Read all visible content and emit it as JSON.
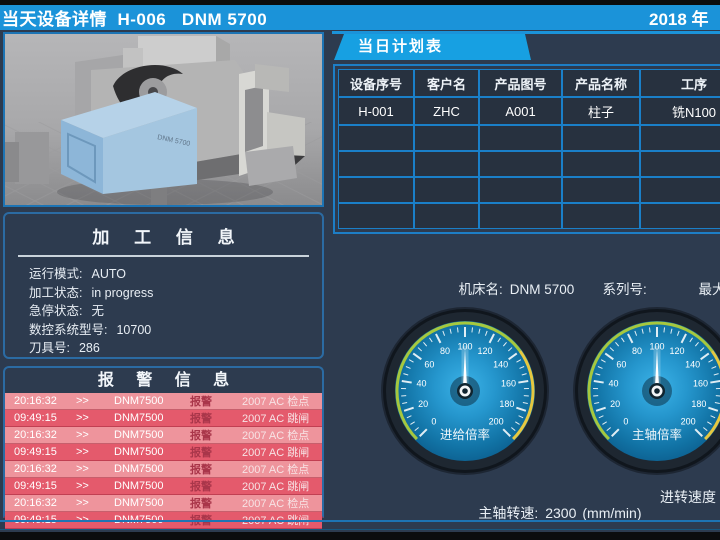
{
  "colors": {
    "accent_blue": "#1b93d9",
    "panel_border_blue": "#2b6ba3",
    "table_grid_blue": "#1a7fc8",
    "alarm_row_light": "#ee949c",
    "alarm_row_dark": "#e45a6c",
    "gauge_green": "#a6c83e",
    "gauge_yellow": "#e6c840"
  },
  "header": {
    "title": "当天设备详情  H-006   DNM 5700",
    "date": "2018 年"
  },
  "machine_image": {
    "panel_text": "DNM 5700"
  },
  "process_info": {
    "title": "加 工 信 息",
    "fields": [
      {
        "label": "运行模式:",
        "value": "AUTO"
      },
      {
        "label": "加工状态:",
        "value": "in progress"
      },
      {
        "label": "急停状态:",
        "value": "无"
      },
      {
        "label": "数控系统型号:",
        "value": "10700"
      },
      {
        "label": "刀具号:",
        "value": "286"
      }
    ]
  },
  "alarm_info": {
    "title": "报 警 信 息",
    "rows": [
      {
        "time": "20:16:32",
        "arrows": ">>",
        "device": "DNM7500",
        "type": "报警",
        "message": "2007 AC 检点"
      },
      {
        "time": "09:49:15",
        "arrows": ">>",
        "device": "DNM7500",
        "type": "报警",
        "message": "2007 AC 跳闸"
      },
      {
        "time": "20:16:32",
        "arrows": ">>",
        "device": "DNM7500",
        "type": "报警",
        "message": "2007 AC 检点"
      },
      {
        "time": "09:49:15",
        "arrows": ">>",
        "device": "DNM7500",
        "type": "报警",
        "message": "2007 AC 跳闸"
      },
      {
        "time": "20:16:32",
        "arrows": ">>",
        "device": "DNM7500",
        "type": "报警",
        "message": "2007 AC 检点"
      },
      {
        "time": "09:49:15",
        "arrows": ">>",
        "device": "DNM7500",
        "type": "报警",
        "message": "2007 AC 跳闸"
      },
      {
        "time": "20:16:32",
        "arrows": ">>",
        "device": "DNM7500",
        "type": "报警",
        "message": "2007 AC 检点"
      },
      {
        "time": "09:49:15",
        "arrows": ">>",
        "device": "DNM7500",
        "type": "报警",
        "message": "2007 AC 跳闸"
      }
    ]
  },
  "plan_table": {
    "tab_label": "当日计划表",
    "columns": [
      "设备序号",
      "客户名",
      "产品图号",
      "产品名称",
      "工序"
    ],
    "rows": [
      [
        "H-001",
        "ZHC",
        "A001",
        "柱子",
        "铣N100"
      ]
    ],
    "empty_rows": 4
  },
  "machine_row": {
    "name_label": "机床名:",
    "name_value": "DNM 5700",
    "serial_label": "系列号:",
    "serial_value": "",
    "max_axes_label": "最大轴数"
  },
  "gauges": [
    {
      "label": "进给倍率",
      "min": 0,
      "max": 200,
      "value": 100,
      "major_step": 20,
      "minor_step": 5,
      "green_range": [
        0,
        140
      ],
      "yellow_range": [
        140,
        200
      ]
    },
    {
      "label": "主轴倍率",
      "min": 0,
      "max": 200,
      "value": 100,
      "major_step": 20,
      "minor_step": 5,
      "green_range": [
        0,
        140
      ],
      "yellow_range": [
        140,
        200
      ]
    }
  ],
  "bottom_info": {
    "spindle_label": "主轴转速:",
    "spindle_value": "2300",
    "spindle_unit": "(mm/min)",
    "feed_label": "进转速度"
  }
}
